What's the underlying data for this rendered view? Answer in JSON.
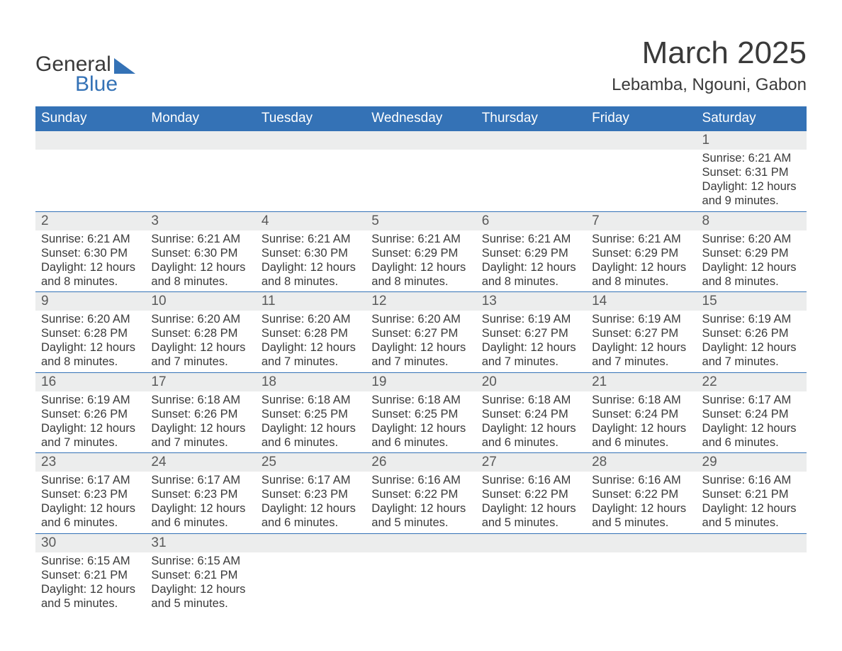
{
  "brand": {
    "word1": "General",
    "word2": "Blue"
  },
  "title": "March 2025",
  "subtitle": "Lebamba, Ngouni, Gabon",
  "colors": {
    "header_bg": "#3472b6",
    "header_fg": "#ffffff",
    "daynum_bg": "#eceded",
    "row_border": "#3472b6",
    "text": "#3a3a3a",
    "page_bg": "#ffffff"
  },
  "day_headers": [
    "Sunday",
    "Monday",
    "Tuesday",
    "Wednesday",
    "Thursday",
    "Friday",
    "Saturday"
  ],
  "first_weekday_index": 6,
  "days": [
    {
      "n": 1,
      "sunrise": "6:21 AM",
      "sunset": "6:31 PM",
      "daylight": "12 hours and 9 minutes."
    },
    {
      "n": 2,
      "sunrise": "6:21 AM",
      "sunset": "6:30 PM",
      "daylight": "12 hours and 8 minutes."
    },
    {
      "n": 3,
      "sunrise": "6:21 AM",
      "sunset": "6:30 PM",
      "daylight": "12 hours and 8 minutes."
    },
    {
      "n": 4,
      "sunrise": "6:21 AM",
      "sunset": "6:30 PM",
      "daylight": "12 hours and 8 minutes."
    },
    {
      "n": 5,
      "sunrise": "6:21 AM",
      "sunset": "6:29 PM",
      "daylight": "12 hours and 8 minutes."
    },
    {
      "n": 6,
      "sunrise": "6:21 AM",
      "sunset": "6:29 PM",
      "daylight": "12 hours and 8 minutes."
    },
    {
      "n": 7,
      "sunrise": "6:21 AM",
      "sunset": "6:29 PM",
      "daylight": "12 hours and 8 minutes."
    },
    {
      "n": 8,
      "sunrise": "6:20 AM",
      "sunset": "6:29 PM",
      "daylight": "12 hours and 8 minutes."
    },
    {
      "n": 9,
      "sunrise": "6:20 AM",
      "sunset": "6:28 PM",
      "daylight": "12 hours and 8 minutes."
    },
    {
      "n": 10,
      "sunrise": "6:20 AM",
      "sunset": "6:28 PM",
      "daylight": "12 hours and 7 minutes."
    },
    {
      "n": 11,
      "sunrise": "6:20 AM",
      "sunset": "6:28 PM",
      "daylight": "12 hours and 7 minutes."
    },
    {
      "n": 12,
      "sunrise": "6:20 AM",
      "sunset": "6:27 PM",
      "daylight": "12 hours and 7 minutes."
    },
    {
      "n": 13,
      "sunrise": "6:19 AM",
      "sunset": "6:27 PM",
      "daylight": "12 hours and 7 minutes."
    },
    {
      "n": 14,
      "sunrise": "6:19 AM",
      "sunset": "6:27 PM",
      "daylight": "12 hours and 7 minutes."
    },
    {
      "n": 15,
      "sunrise": "6:19 AM",
      "sunset": "6:26 PM",
      "daylight": "12 hours and 7 minutes."
    },
    {
      "n": 16,
      "sunrise": "6:19 AM",
      "sunset": "6:26 PM",
      "daylight": "12 hours and 7 minutes."
    },
    {
      "n": 17,
      "sunrise": "6:18 AM",
      "sunset": "6:26 PM",
      "daylight": "12 hours and 7 minutes."
    },
    {
      "n": 18,
      "sunrise": "6:18 AM",
      "sunset": "6:25 PM",
      "daylight": "12 hours and 6 minutes."
    },
    {
      "n": 19,
      "sunrise": "6:18 AM",
      "sunset": "6:25 PM",
      "daylight": "12 hours and 6 minutes."
    },
    {
      "n": 20,
      "sunrise": "6:18 AM",
      "sunset": "6:24 PM",
      "daylight": "12 hours and 6 minutes."
    },
    {
      "n": 21,
      "sunrise": "6:18 AM",
      "sunset": "6:24 PM",
      "daylight": "12 hours and 6 minutes."
    },
    {
      "n": 22,
      "sunrise": "6:17 AM",
      "sunset": "6:24 PM",
      "daylight": "12 hours and 6 minutes."
    },
    {
      "n": 23,
      "sunrise": "6:17 AM",
      "sunset": "6:23 PM",
      "daylight": "12 hours and 6 minutes."
    },
    {
      "n": 24,
      "sunrise": "6:17 AM",
      "sunset": "6:23 PM",
      "daylight": "12 hours and 6 minutes."
    },
    {
      "n": 25,
      "sunrise": "6:17 AM",
      "sunset": "6:23 PM",
      "daylight": "12 hours and 6 minutes."
    },
    {
      "n": 26,
      "sunrise": "6:16 AM",
      "sunset": "6:22 PM",
      "daylight": "12 hours and 5 minutes."
    },
    {
      "n": 27,
      "sunrise": "6:16 AM",
      "sunset": "6:22 PM",
      "daylight": "12 hours and 5 minutes."
    },
    {
      "n": 28,
      "sunrise": "6:16 AM",
      "sunset": "6:22 PM",
      "daylight": "12 hours and 5 minutes."
    },
    {
      "n": 29,
      "sunrise": "6:16 AM",
      "sunset": "6:21 PM",
      "daylight": "12 hours and 5 minutes."
    },
    {
      "n": 30,
      "sunrise": "6:15 AM",
      "sunset": "6:21 PM",
      "daylight": "12 hours and 5 minutes."
    },
    {
      "n": 31,
      "sunrise": "6:15 AM",
      "sunset": "6:21 PM",
      "daylight": "12 hours and 5 minutes."
    }
  ],
  "labels": {
    "sunrise": "Sunrise: ",
    "sunset": "Sunset: ",
    "daylight": "Daylight: "
  }
}
